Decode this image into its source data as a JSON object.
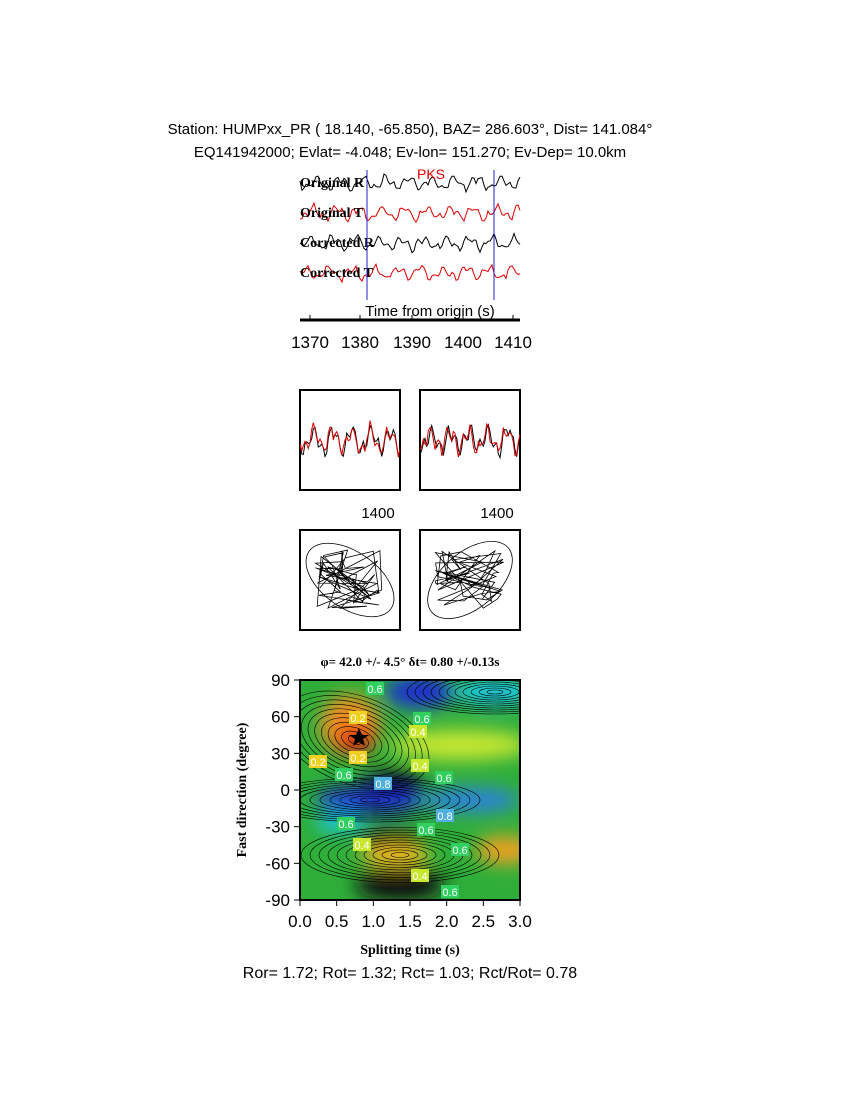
{
  "header": {
    "line1": "Station: HUMPxx_PR (  18.140,  -65.850), BAZ=  286.603°, Dist=  141.084°",
    "line2": "EQ141942000; Evlat=  -4.048; Ev-lon= 151.270; Ev-Dep= 10.0km"
  },
  "waveforms": {
    "labels": [
      "Original R",
      "Original T",
      "Corrected R",
      "Corrected T"
    ],
    "phase": "PKS",
    "xlabel": "Time from origin (s)",
    "xticks": [
      "1370",
      "1380",
      "1390",
      "1400",
      "1410"
    ]
  },
  "particle_motion": {
    "tick_labels": [
      "1400",
      "1400"
    ]
  },
  "grid_search": {
    "title": "φ= 42.0 +/- 4.5° δt= 0.80 +/-0.13s",
    "ylabel": "Fast direction (degree)",
    "xlabel": "Splitting time (s)",
    "yticks": [
      "90",
      "60",
      "30",
      "0",
      "-30",
      "-60",
      "-90"
    ],
    "xticks": [
      "0.0",
      "0.5",
      "1.0",
      "1.5",
      "2.0",
      "2.5",
      "3.0"
    ],
    "contour_labels": [
      "0.6",
      "0.2",
      "0.6",
      "0.4",
      "0.2",
      "0.2",
      "0.6",
      "0.4",
      "0.6",
      "0.8",
      "0.8",
      "0.6",
      "0.6",
      "0.4",
      "0.6",
      "0.4",
      "0.6"
    ]
  },
  "footer": "Ror= 1.72; Rot= 1.32; Rct= 1.03; Rct/Rot= 0.78"
}
